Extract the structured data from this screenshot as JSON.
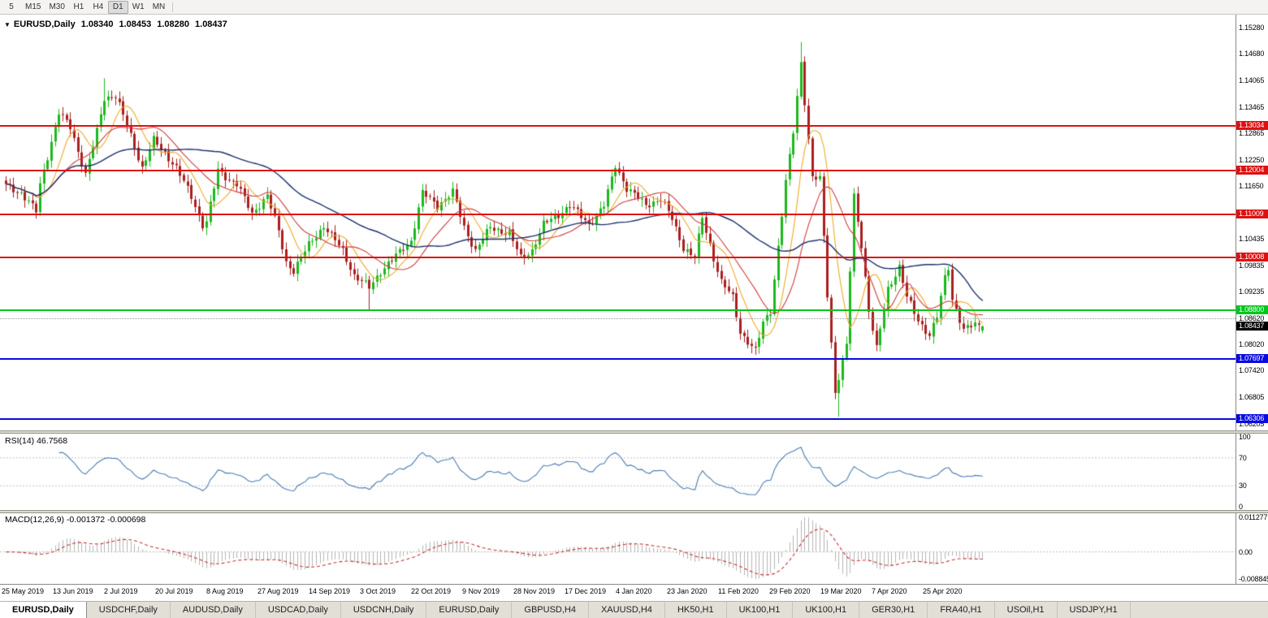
{
  "toolbar": {
    "timeframes": [
      "5",
      "M15",
      "M30",
      "H1",
      "H4",
      "D1",
      "W1",
      "MN"
    ],
    "active": "D1"
  },
  "chart_header": {
    "collapse_icon": "▼",
    "symbol": "EURUSD,Daily",
    "open": "1.08340",
    "high": "1.08453",
    "low": "1.08280",
    "close": "1.08437"
  },
  "price_axis": {
    "ticks": [
      "1.15280",
      "1.14680",
      "1.14065",
      "1.13465",
      "1.12865",
      "1.12250",
      "1.11650",
      "1.11035",
      "1.10435",
      "1.09835",
      "1.09235",
      "1.08620",
      "1.08020",
      "1.07420",
      "1.06805",
      "1.06205"
    ]
  },
  "levels": {
    "hlines": [
      {
        "price": 1.13034,
        "label": "1.13034",
        "color": "#dd1111",
        "name": "resistance-line-1"
      },
      {
        "price": 1.12004,
        "label": "1.12004",
        "color": "#dd1111",
        "name": "resistance-line-2"
      },
      {
        "price": 1.11009,
        "label": "1.11009",
        "color": "#dd1111",
        "name": "resistance-line-3"
      },
      {
        "price": 1.10008,
        "label": "1.10008",
        "color": "#dd1111",
        "name": "resistance-line-4"
      },
      {
        "price": 1.088,
        "label": "1.08800",
        "color": "#00c61c",
        "name": "support-line-green"
      },
      {
        "price": 1.07697,
        "label": "1.07697",
        "color": "#0a0adf",
        "name": "support-line-blue-1"
      },
      {
        "price": 1.06306,
        "label": "1.06306",
        "color": "#0a0adf",
        "name": "support-line-blue-2"
      }
    ],
    "dotted_level": 1.0862,
    "current_price": {
      "value": 1.08437,
      "label": "1.08437",
      "bg": "#000000"
    }
  },
  "indicators": {
    "rsi": {
      "label": "RSI(14) 46.7568",
      "value": 46.7568,
      "period": 14,
      "axis": [
        "100",
        "70",
        "30",
        "0"
      ],
      "guide_levels": [
        70,
        30
      ],
      "color": "#4a7ab5"
    },
    "macd": {
      "label": "MACD(12,26,9) -0.001372 -0.000698",
      "macd_value": -0.001372,
      "signal_value": -0.000698,
      "axis": [
        "0.011277",
        "0.00",
        "-0.008845"
      ],
      "range": [
        -0.008845,
        0.011277
      ]
    }
  },
  "time_axis": {
    "dates": [
      "25 May 2019",
      "13 Jun 2019",
      "2 Jul 2019",
      "20 Jul 2019",
      "8 Aug 2019",
      "27 Aug 2019",
      "14 Sep 2019",
      "3 Oct 2019",
      "22 Oct 2019",
      "9 Nov 2019",
      "28 Nov 2019",
      "17 Dec 2019",
      "4 Jan 2020",
      "23 Jan 2020",
      "11 Feb 2020",
      "29 Feb 2020",
      "19 Mar 2020",
      "7 Apr 2020",
      "25 Apr 2020"
    ]
  },
  "tabs": {
    "items": [
      {
        "label": "EURUSD,Daily",
        "active": true
      },
      {
        "label": "USDCHF,Daily",
        "active": false
      },
      {
        "label": "AUDUSD,Daily",
        "active": false
      },
      {
        "label": "USDCAD,Daily",
        "active": false
      },
      {
        "label": "USDCNH,Daily",
        "active": false
      },
      {
        "label": "EURUSD,Daily",
        "active": false
      },
      {
        "label": "GBPUSD,H4",
        "active": false
      },
      {
        "label": "XAUUSD,H4",
        "active": false
      },
      {
        "label": "HK50,H1",
        "active": false
      },
      {
        "label": "UK100,H1",
        "active": false
      },
      {
        "label": "UK100,H1",
        "active": false
      },
      {
        "label": "GER30,H1",
        "active": false
      },
      {
        "label": "FRA40,H1",
        "active": false
      },
      {
        "label": "USOil,H1",
        "active": false
      },
      {
        "label": "USDJPY,H1",
        "active": false
      }
    ]
  },
  "colors": {
    "candle_up": "#1cb81c",
    "candle_down": "#aa1f1f",
    "rsi": "#4a7ab5",
    "macd_bars": "#b4b4b4",
    "macd_signal": "#c83232",
    "resistance": "#dd1111",
    "support_green": "#00c61c",
    "support_blue": "#0a0adf",
    "current_price_bg": "#000000",
    "dotted": "#9a9a9a"
  },
  "chart_data": {
    "type": "candlestick",
    "symbol": "EURUSD",
    "timeframe": "Daily",
    "visible_price_range": [
      1.0605,
      1.1545
    ],
    "candle_count": 259,
    "note": "close waypoints (candle index, price) read off the chart: EURUSD daily May 2019 - May 2020",
    "close_waypoints": [
      [
        0,
        1.1166
      ],
      [
        4,
        1.115
      ],
      [
        8,
        1.1107
      ],
      [
        9,
        1.1168
      ],
      [
        14,
        1.1333
      ],
      [
        17,
        1.13
      ],
      [
        21,
        1.1192
      ],
      [
        24,
        1.129
      ],
      [
        26,
        1.1367
      ],
      [
        29,
        1.1373
      ],
      [
        33,
        1.128
      ],
      [
        36,
        1.1207
      ],
      [
        39,
        1.127
      ],
      [
        43,
        1.123
      ],
      [
        45,
        1.1208
      ],
      [
        49,
        1.114
      ],
      [
        52,
        1.1077
      ],
      [
        53,
        1.1084
      ],
      [
        56,
        1.12
      ],
      [
        59,
        1.118
      ],
      [
        61,
        1.1171
      ],
      [
        65,
        1.11
      ],
      [
        69,
        1.1145
      ],
      [
        72,
        1.106
      ],
      [
        74,
        1.099
      ],
      [
        76,
        1.0972
      ],
      [
        80,
        1.103
      ],
      [
        84,
        1.1074
      ],
      [
        87,
        1.104
      ],
      [
        89,
        1.1017
      ],
      [
        92,
        1.096
      ],
      [
        96,
        1.0932
      ],
      [
        99,
        1.097
      ],
      [
        103,
        1.1005
      ],
      [
        107,
        1.104
      ],
      [
        110,
        1.115
      ],
      [
        114,
        1.112
      ],
      [
        118,
        1.1152
      ],
      [
        121,
        1.107
      ],
      [
        124,
        1.1018
      ],
      [
        128,
        1.107
      ],
      [
        131,
        1.1062
      ],
      [
        133,
        1.1058
      ],
      [
        136,
        1.1
      ],
      [
        139,
        1.1018
      ],
      [
        142,
        1.1077
      ],
      [
        146,
        1.11
      ],
      [
        149,
        1.1121
      ],
      [
        152,
        1.1095
      ],
      [
        154,
        1.1078
      ],
      [
        158,
        1.112
      ],
      [
        161,
        1.1213
      ],
      [
        164,
        1.116
      ],
      [
        169,
        1.1122
      ],
      [
        173,
        1.1135
      ],
      [
        176,
        1.109
      ],
      [
        179,
        1.1024
      ],
      [
        182,
        1.1
      ],
      [
        184,
        1.1093
      ],
      [
        187,
        1.1
      ],
      [
        189,
        1.0945
      ],
      [
        192,
        1.091
      ],
      [
        194,
        1.0831
      ],
      [
        198,
        1.0786
      ],
      [
        200,
        1.0852
      ],
      [
        202,
        1.088
      ],
      [
        204,
        1.1026
      ],
      [
        206,
        1.1173
      ],
      [
        208,
        1.129
      ],
      [
        210,
        1.145
      ],
      [
        211,
        1.136
      ],
      [
        212,
        1.1271
      ],
      [
        213,
        1.1184
      ],
      [
        215,
        1.118
      ],
      [
        217,
        1.0917
      ],
      [
        219,
        1.0694
      ],
      [
        220,
        1.0727
      ],
      [
        222,
        1.08
      ],
      [
        224,
        1.1141
      ],
      [
        226,
        1.1031
      ],
      [
        228,
        1.088
      ],
      [
        230,
        1.0791
      ],
      [
        233,
        1.093
      ],
      [
        236,
        1.098
      ],
      [
        238,
        1.091
      ],
      [
        241,
        1.0858
      ],
      [
        244,
        1.0823
      ],
      [
        246,
        1.0865
      ],
      [
        248,
        1.0955
      ],
      [
        249,
        1.098
      ],
      [
        250,
        1.0907
      ],
      [
        253,
        1.0834
      ],
      [
        256,
        1.0849
      ],
      [
        258,
        1.08437
      ]
    ],
    "extremes": [
      {
        "i": 26,
        "high": 1.1412
      },
      {
        "i": 96,
        "low": 1.0879
      },
      {
        "i": 198,
        "low": 1.0778
      },
      {
        "i": 210,
        "high": 1.1495
      },
      {
        "i": 220,
        "low": 1.0636
      }
    ],
    "last_candle": {
      "open": 1.0834,
      "high": 1.08453,
      "low": 1.0828,
      "close": 1.08437
    },
    "moving_averages": [
      {
        "period": 8,
        "color": "#efa829",
        "name": "ma-fast"
      },
      {
        "period": 16,
        "color": "#cf3a3a",
        "name": "ma-mid"
      },
      {
        "period": 45,
        "color": "#1b2f6e",
        "name": "ma-slow"
      }
    ]
  }
}
